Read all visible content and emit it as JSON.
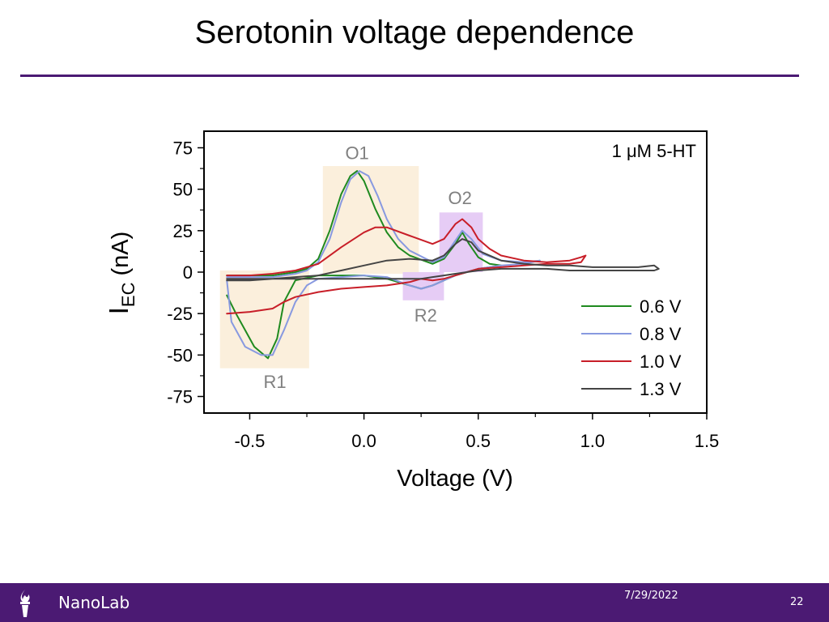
{
  "slide": {
    "title": "Serotonin voltage dependence",
    "footer_label": "NanoLab",
    "footer_date": "7/29/2022",
    "page_number": "22"
  },
  "colors": {
    "accent": "#4b1a73",
    "oxidation_region": "#fbefdc",
    "secondary_region": "#e6ccf5",
    "region_label": "#808080"
  },
  "chart_data": {
    "type": "line",
    "title": "",
    "xlabel": "Voltage (V)",
    "ylabel_main": "I",
    "ylabel_sub": "EC",
    "ylabel_unit": "(nA)",
    "xlim": [
      -0.7,
      1.5
    ],
    "ylim": [
      -85,
      85
    ],
    "xticks": [
      -0.5,
      0.0,
      0.5,
      1.0,
      1.5
    ],
    "xtick_labels": [
      "-0.5",
      "0.0",
      "0.5",
      "1.0",
      "1.5"
    ],
    "yticks": [
      75,
      50,
      25,
      0,
      -25,
      -50,
      -75
    ],
    "ytick_labels": [
      "75",
      "50",
      "25",
      "0",
      "-25",
      "-50",
      "-75"
    ],
    "grid": false,
    "legend_position": "bottom-right",
    "annotation": "1 μM 5-HT",
    "regions": [
      {
        "label": "O1",
        "x": [
          -0.18,
          0.24
        ],
        "y": [
          -1,
          64
        ],
        "color": "#fbefdc",
        "label_at": [
          -0.03,
          72
        ]
      },
      {
        "label": "O2",
        "x": [
          0.33,
          0.52
        ],
        "y": [
          0,
          36
        ],
        "color": "#e6ccf5",
        "label_at": [
          0.42,
          45
        ]
      },
      {
        "label": "R2",
        "x": [
          0.17,
          0.35
        ],
        "y": [
          -17,
          0
        ],
        "color": "#e6ccf5",
        "label_at": [
          0.27,
          -26
        ]
      },
      {
        "label": "R1",
        "x": [
          -0.63,
          -0.24
        ],
        "y": [
          -58,
          1
        ],
        "color": "#fbefdc",
        "label_at": [
          -0.39,
          -66
        ]
      }
    ],
    "series": [
      {
        "name": "0.6 V",
        "color": "#1f8a1f",
        "x": [
          -0.6,
          -0.5,
          -0.4,
          -0.3,
          -0.25,
          -0.2,
          -0.15,
          -0.1,
          -0.06,
          -0.03,
          0.0,
          0.05,
          0.1,
          0.15,
          0.2,
          0.3,
          0.35,
          0.4,
          0.43,
          0.46,
          0.5,
          0.55,
          0.6,
          0.55,
          0.5,
          0.45,
          0.4,
          0.35,
          0.3,
          0.25,
          0.2,
          0.1,
          0.0,
          -0.1,
          -0.2,
          -0.3,
          -0.35,
          -0.38,
          -0.42,
          -0.48,
          -0.52,
          -0.56,
          -0.6
        ],
        "y": [
          -2,
          -2,
          -2,
          0,
          2,
          8,
          25,
          47,
          58,
          61,
          55,
          38,
          24,
          15,
          10,
          5,
          8,
          17,
          24,
          17,
          9,
          5,
          4,
          3,
          2,
          0,
          -2,
          -5,
          -8,
          -10,
          -8,
          -4,
          -2,
          -2,
          -2,
          -5,
          -18,
          -40,
          -52,
          -45,
          -35,
          -25,
          -14
        ]
      },
      {
        "name": "0.8 V",
        "color": "#8899e0",
        "x": [
          -0.6,
          -0.5,
          -0.4,
          -0.3,
          -0.25,
          -0.2,
          -0.15,
          -0.1,
          -0.06,
          -0.02,
          0.02,
          0.06,
          0.1,
          0.15,
          0.2,
          0.3,
          0.35,
          0.4,
          0.43,
          0.47,
          0.52,
          0.6,
          0.7,
          0.77,
          0.7,
          0.6,
          0.5,
          0.45,
          0.4,
          0.35,
          0.3,
          0.25,
          0.2,
          0.1,
          0.0,
          -0.1,
          -0.2,
          -0.25,
          -0.3,
          -0.35,
          -0.4,
          -0.45,
          -0.52,
          -0.58,
          -0.6
        ],
        "y": [
          -3,
          -3,
          -3,
          -1,
          1,
          6,
          20,
          42,
          56,
          61,
          58,
          46,
          32,
          20,
          13,
          6,
          9,
          19,
          25,
          20,
          11,
          7,
          6,
          7,
          5,
          4,
          2,
          0,
          -2,
          -5,
          -8,
          -10,
          -8,
          -3,
          -2,
          -3,
          -4,
          -8,
          -18,
          -35,
          -50,
          -50,
          -45,
          -30,
          -5
        ]
      },
      {
        "name": "1.0 V",
        "color": "#c81e28",
        "x": [
          -0.6,
          -0.5,
          -0.4,
          -0.3,
          -0.2,
          -0.1,
          0.0,
          0.05,
          0.1,
          0.2,
          0.3,
          0.35,
          0.4,
          0.43,
          0.47,
          0.5,
          0.55,
          0.6,
          0.7,
          0.8,
          0.9,
          0.95,
          0.97,
          0.95,
          0.9,
          0.8,
          0.7,
          0.6,
          0.5,
          0.45,
          0.4,
          0.35,
          0.3,
          0.25,
          0.2,
          0.1,
          0.0,
          -0.1,
          -0.2,
          -0.3,
          -0.35,
          -0.4,
          -0.5,
          -0.6
        ],
        "y": [
          -2,
          -2,
          -1,
          1,
          5,
          15,
          24,
          27,
          27,
          22,
          17,
          20,
          29,
          32,
          27,
          20,
          14,
          10,
          7,
          6,
          7,
          9,
          10,
          6,
          5,
          5,
          4,
          3,
          2,
          0,
          -2,
          -4,
          -5,
          -4,
          -6,
          -8,
          -9,
          -10,
          -12,
          -15,
          -18,
          -22,
          -24,
          -25
        ]
      },
      {
        "name": "1.3 V",
        "color": "#444444",
        "x": [
          -0.6,
          -0.5,
          -0.4,
          -0.3,
          -0.2,
          -0.1,
          0.0,
          0.1,
          0.2,
          0.3,
          0.35,
          0.4,
          0.43,
          0.47,
          0.5,
          0.6,
          0.7,
          0.8,
          0.9,
          1.0,
          1.1,
          1.2,
          1.27,
          1.29,
          1.27,
          1.2,
          1.1,
          1.0,
          0.9,
          0.8,
          0.7,
          0.6,
          0.5,
          0.4,
          0.35,
          0.3,
          0.25,
          0.2,
          0.1,
          0.0,
          -0.1,
          -0.2,
          -0.3,
          -0.4,
          -0.5,
          -0.6
        ],
        "y": [
          -4,
          -4,
          -4,
          -3,
          -2,
          1,
          4,
          7,
          8,
          7,
          10,
          17,
          20,
          18,
          13,
          7,
          5,
          4,
          4,
          3,
          3,
          3,
          4,
          2,
          1,
          1,
          1,
          1,
          1,
          2,
          2,
          2,
          1,
          -1,
          -2,
          -3,
          -4,
          -4,
          -4,
          -4,
          -4,
          -4,
          -4,
          -4,
          -5,
          -5
        ]
      }
    ]
  }
}
